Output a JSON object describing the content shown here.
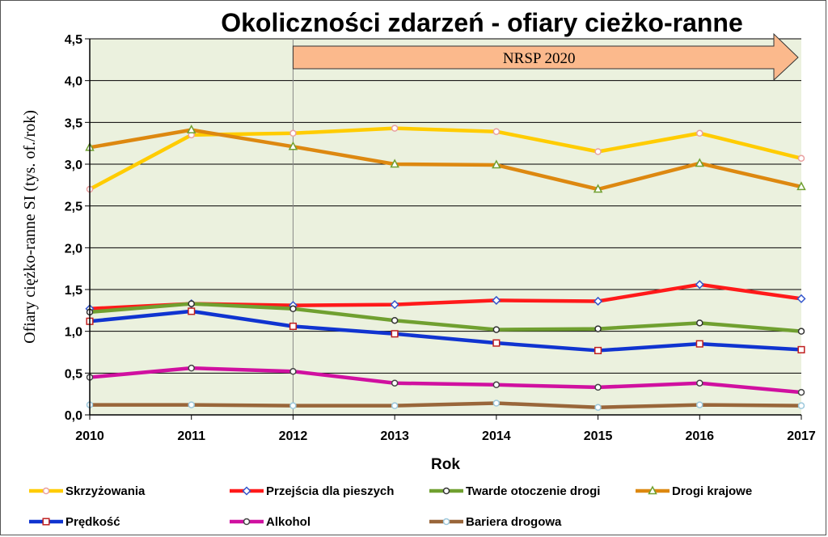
{
  "chart_data": {
    "type": "line",
    "title": "Okoliczności zdarzeń - ofiary cieżko-ranne",
    "xlabel": "Rok",
    "ylabel": "Ofiary ciężko-ranne SI (tys. of./rok)",
    "x": [
      2010,
      2011,
      2012,
      2013,
      2014,
      2015,
      2016,
      2017
    ],
    "ylim": [
      0,
      4.5
    ],
    "yticks": [
      "0,0",
      "0,5",
      "1,0",
      "1,5",
      "2,0",
      "2,5",
      "3,0",
      "3,5",
      "4,0",
      "4,5"
    ],
    "grid": true,
    "legend_position": "bottom",
    "annotation": {
      "text": "NRSP 2020",
      "x_start": 2012,
      "x_end": 2017
    },
    "series": [
      {
        "name": "Skrzyżowania",
        "color": "#FFCC00",
        "marker": "circle",
        "marker_color": "#E9A0A0",
        "values": [
          2.7,
          3.35,
          3.37,
          3.43,
          3.39,
          3.15,
          3.37,
          3.07
        ]
      },
      {
        "name": "Przejścia dla pieszych",
        "color": "#FF1A1A",
        "marker": "diamond",
        "marker_color": "#3355CC",
        "values": [
          1.27,
          1.33,
          1.31,
          1.32,
          1.37,
          1.36,
          1.56,
          1.39
        ]
      },
      {
        "name": "Twarde otoczenie drogi",
        "color": "#70A030",
        "marker": "circle",
        "marker_color": "#333333",
        "values": [
          1.23,
          1.33,
          1.27,
          1.13,
          1.02,
          1.03,
          1.1,
          1.0
        ]
      },
      {
        "name": "Drogi krajowe",
        "color": "#DD8810",
        "marker": "triangle",
        "marker_color": "#70A030",
        "values": [
          3.2,
          3.41,
          3.21,
          3.0,
          2.99,
          2.7,
          3.01,
          2.73
        ]
      },
      {
        "name": "Prędkość",
        "color": "#1034D0",
        "marker": "square",
        "marker_color": "#C02020",
        "values": [
          1.12,
          1.24,
          1.06,
          0.97,
          0.86,
          0.77,
          0.85,
          0.78
        ]
      },
      {
        "name": "Alkohol",
        "color": "#D010A0",
        "marker": "circle",
        "marker_color": "#444444",
        "values": [
          0.45,
          0.56,
          0.52,
          0.38,
          0.36,
          0.33,
          0.38,
          0.27
        ]
      },
      {
        "name": "Bariera drogowa",
        "color": "#99663A",
        "marker": "circle",
        "marker_color": "#9CC8DC",
        "values": [
          0.12,
          0.12,
          0.11,
          0.11,
          0.14,
          0.09,
          0.12,
          0.11
        ]
      }
    ]
  }
}
